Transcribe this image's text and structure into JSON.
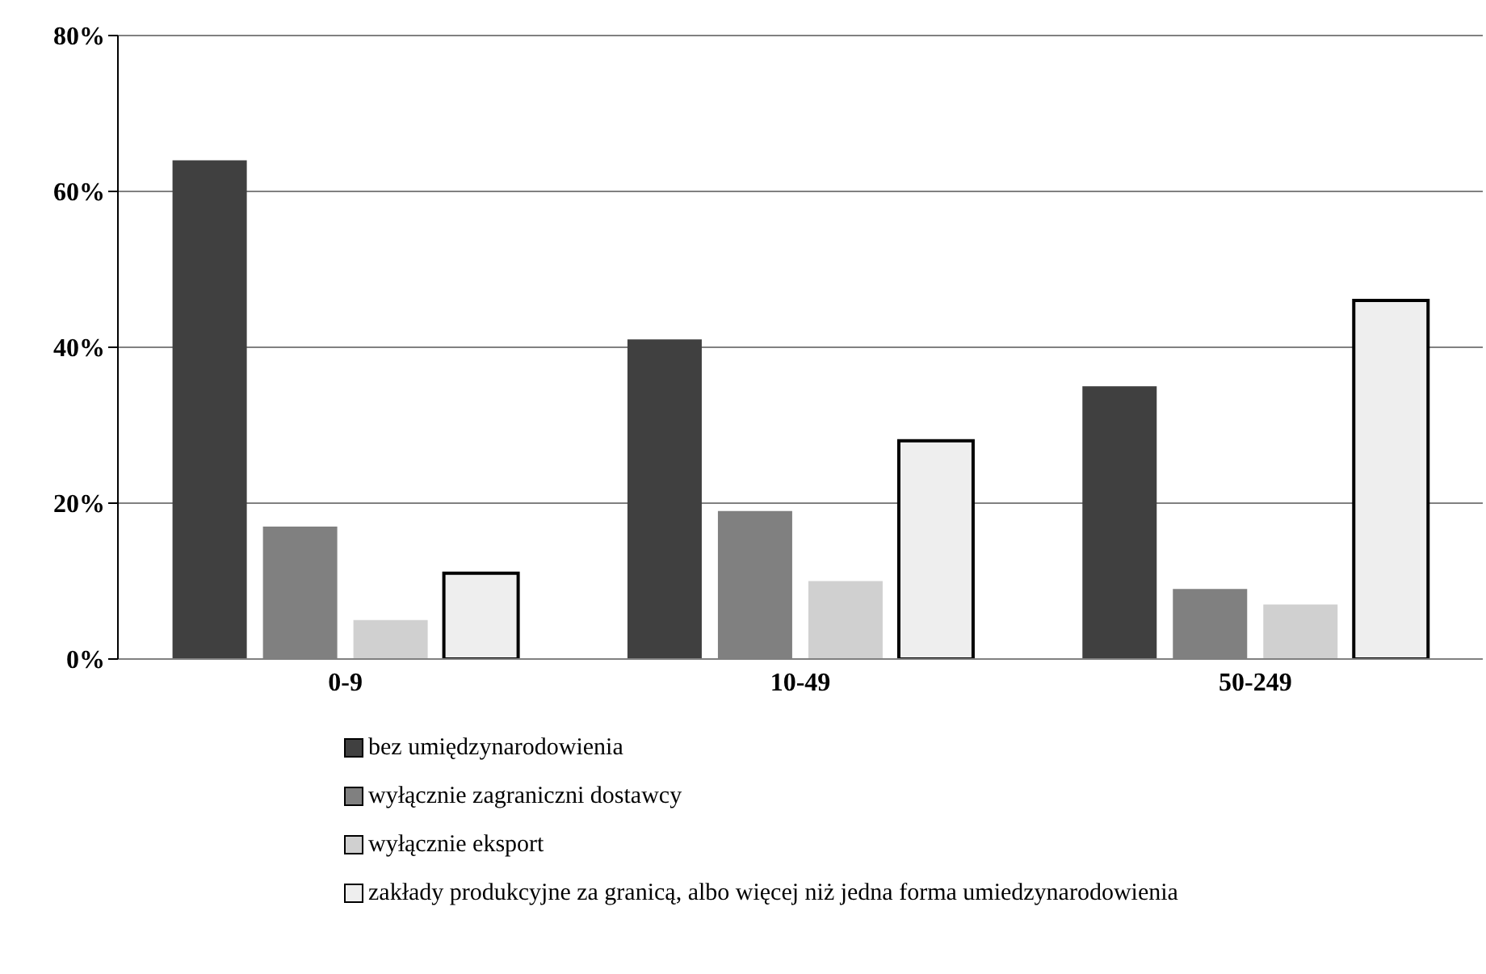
{
  "chart_data": {
    "type": "bar",
    "categories": [
      "0-9",
      "10-49",
      "50-249"
    ],
    "series": [
      {
        "name": "bez umiędzynarodowienia",
        "color": "#404040",
        "values": [
          64,
          41,
          35
        ]
      },
      {
        "name": "wyłącznie zagraniczni dostawcy",
        "color": "#808080",
        "values": [
          17,
          19,
          9
        ]
      },
      {
        "name": "wyłącznie eksport",
        "color": "#d0d0d0",
        "values": [
          5,
          10,
          7
        ]
      },
      {
        "name": "zakłady produkcyjne za granicą, albo więcej niż jedna forma umiedzynarodowienia",
        "color": "#eeeeee",
        "values": [
          11,
          28,
          46
        ]
      }
    ],
    "ylim": [
      0,
      80
    ],
    "yticks": [
      {
        "value": 0,
        "label": "0%"
      },
      {
        "value": 20,
        "label": "20%"
      },
      {
        "value": 40,
        "label": "40%"
      },
      {
        "value": 60,
        "label": "60%"
      },
      {
        "value": 80,
        "label": "80%"
      }
    ],
    "grid": "y",
    "legend": "bottom"
  }
}
